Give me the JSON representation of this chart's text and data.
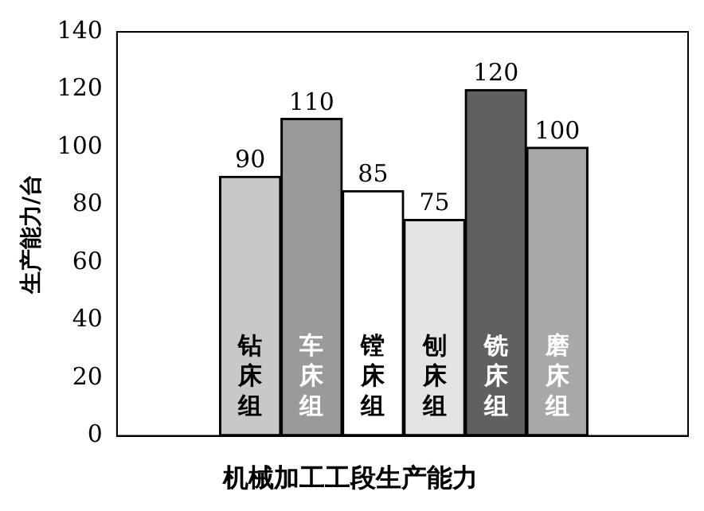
{
  "chart_data": {
    "type": "bar",
    "title": "机械加工工段生产能力",
    "ylabel": "生产能力/台",
    "categories": [
      "钻床组",
      "车床组",
      "镗床组",
      "刨床组",
      "铣床组",
      "磨床组"
    ],
    "values": [
      90,
      110,
      85,
      75,
      120,
      100
    ],
    "colors": [
      "#c8c8c8",
      "#9a9a9a",
      "#ffffff",
      "#e4e4e4",
      "#606060",
      "#a8a8a8"
    ],
    "ylim": [
      0,
      140
    ],
    "yticks": [
      0,
      20,
      40,
      60,
      80,
      100,
      120,
      140
    ],
    "grid": false,
    "data_labels": true
  }
}
